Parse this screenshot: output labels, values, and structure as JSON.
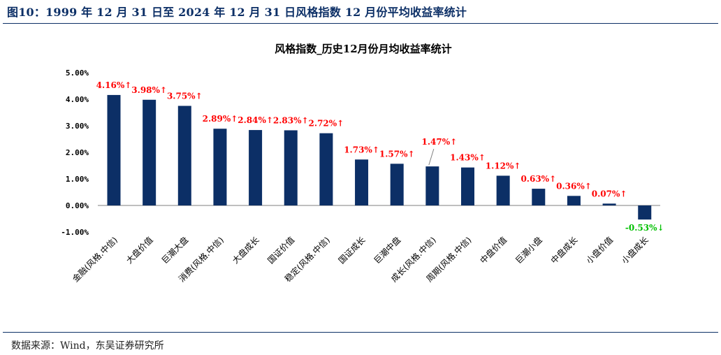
{
  "figure": {
    "title": "图10：1999 年 12 月 31 日至 2024 年 12 月 31 日风格指数 12 月份平均收益率统计",
    "source": "数据来源：Wind，东吴证券研究所"
  },
  "colors": {
    "bar": "#0c2f66",
    "positive_label": "#ff0000",
    "negative_label": "#00c000",
    "title_color": "#0c2f66"
  },
  "chart_data": {
    "type": "bar",
    "title": "风格指数_历史12月份月均收益率统计",
    "xlabel": "",
    "ylabel": "",
    "ylim": [
      -1.0,
      5.0
    ],
    "yticks": [
      5.0,
      4.0,
      3.0,
      2.0,
      1.0,
      0.0,
      -1.0
    ],
    "ytick_labels": [
      "5.00%",
      "4.00%",
      "3.00%",
      "2.00%",
      "1.00%",
      "0.00%",
      "-1.00%"
    ],
    "grid": false,
    "categories": [
      "金融(风格.中信)",
      "大盘价值",
      "巨潮大盘",
      "消费(风格.中信)",
      "大盘成长",
      "国证价值",
      "稳定(风格.中信)",
      "国证成长",
      "巨潮中盘",
      "成长(风格.中信)",
      "周期(风格.中信)",
      "中盘价值",
      "巨潮小盘",
      "中盘成长",
      "小盘价值",
      "小盘成长"
    ],
    "values": [
      4.16,
      3.98,
      3.75,
      2.89,
      2.84,
      2.83,
      2.72,
      1.73,
      1.57,
      1.47,
      1.43,
      1.12,
      0.63,
      0.36,
      0.07,
      -0.53
    ],
    "data_labels": [
      "4.16%↑",
      "3.98%↑",
      "3.75%↑",
      "2.89%↑",
      "2.84%↑",
      "2.83%↑",
      "2.72%↑",
      "1.73%↑",
      "1.57%↑",
      "1.47%↑",
      "1.43%↑",
      "1.12%↑",
      "0.63%↑",
      "0.36%↑",
      "0.07%↑",
      "-0.53%↓"
    ]
  }
}
